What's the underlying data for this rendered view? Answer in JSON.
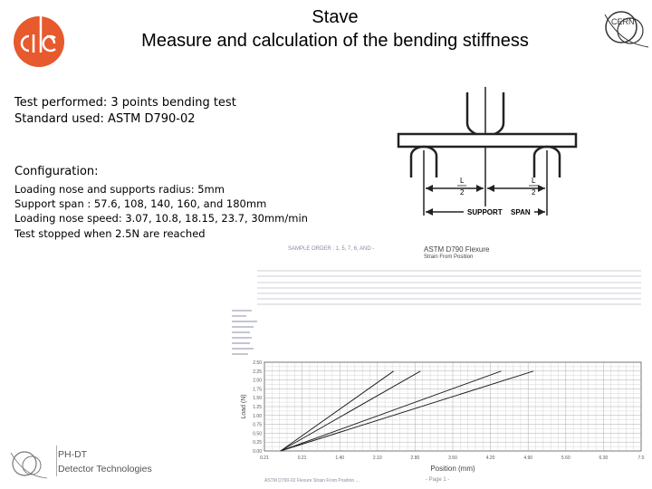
{
  "header": {
    "title_line1": "Stave",
    "title_line2": "Measure and calculation of the bending stiffness",
    "clic_logo_text": "CLIC",
    "cern_logo_text": "CERN"
  },
  "test_info": {
    "line1": "Test performed: 3 points bending test",
    "line2": "Standard used: ASTM D790-02"
  },
  "configuration": {
    "heading": "Configuration:",
    "lines": [
      "Loading nose and supports radius: 5mm",
      "Support span : 57.6, 108, 140, 160, and 180mm",
      "Loading nose speed: 3.07, 10.8, 18.15, 23.7, 30mm/min",
      "Test stopped when 2.5N are reached"
    ]
  },
  "diagram": {
    "label_l": "L",
    "label_2": "2",
    "support": "SUPPORT",
    "span": "SPAN"
  },
  "report": {
    "sample_order": "SAMPLE ORDER : 1, 5, 7, 6, AND -",
    "chart_title_line1": "ASTM D790 Flexure",
    "chart_title_line2": "Strain From Position",
    "footer_left": "ASTM D790-02 Flexure Strain From Position ...",
    "footer_center": "- Page 1 -"
  },
  "footer": {
    "dept": "PH-DT",
    "group": "Detector Technologies"
  },
  "chart_data": {
    "type": "line",
    "xlabel": "Position (mm)",
    "ylabel": "Load (N)",
    "xlim": [
      0.0,
      7.0
    ],
    "ylim": [
      0.0,
      2.5
    ],
    "x_ticks": [
      "0.21",
      "0.21",
      "1.40",
      "2.10",
      "2.80",
      "3.50",
      "4.20",
      "4.90",
      "5.60",
      "6.30",
      "7.0"
    ],
    "y_ticks": [
      "0.00",
      "0.25",
      "0.50",
      "0.75",
      "1.00",
      "1.25",
      "1.50",
      "1.75",
      "2.00",
      "2.25",
      "2.50"
    ],
    "grid": true,
    "series": [
      {
        "x": [
          0.3,
          2.4
        ],
        "y": [
          0.0,
          2.25
        ]
      },
      {
        "x": [
          0.3,
          2.9
        ],
        "y": [
          0.0,
          2.25
        ]
      },
      {
        "x": [
          0.3,
          4.4
        ],
        "y": [
          0.0,
          2.25
        ]
      },
      {
        "x": [
          0.3,
          5.0
        ],
        "y": [
          0.0,
          2.25
        ]
      }
    ]
  }
}
